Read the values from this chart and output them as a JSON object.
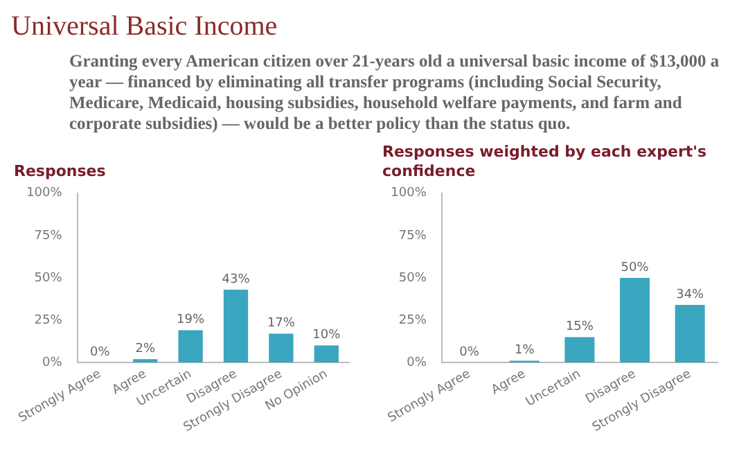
{
  "chart_data": [
    {
      "type": "other",
      "title": "Universal Basic Income",
      "subtitle": "Granting every American citizen over 21-years old a universal basic income of $13,000 a year — financed by eliminating all transfer programs (including Social Security, Medicare, Medicaid, housing subsidies, household welfare payments, and farm and corporate subsidies) — would be a better policy than the status quo."
    },
    {
      "type": "bar",
      "title": "Responses",
      "categories": [
        "Strongly Agree",
        "Agree",
        "Uncertain",
        "Disagree",
        "Strongly Disagree",
        "No Opinion"
      ],
      "values": [
        0,
        2,
        19,
        43,
        17,
        10
      ],
      "value_labels": [
        "0%",
        "2%",
        "19%",
        "43%",
        "17%",
        "10%"
      ],
      "color": "#3aa6c0",
      "ylim": [
        0,
        100
      ],
      "yticks": [
        {
          "value": 0,
          "label": "0%"
        },
        {
          "value": 25,
          "label": "25%"
        },
        {
          "value": 50,
          "label": "50%"
        },
        {
          "value": 75,
          "label": "75%"
        },
        {
          "value": 100,
          "label": "100%"
        }
      ]
    },
    {
      "type": "bar",
      "title": "Responses weighted by each expert's confidence",
      "categories": [
        "Strongly Agree",
        "Agree",
        "Uncertain",
        "Disagree",
        "Strongly Disagree"
      ],
      "values": [
        0,
        1,
        15,
        50,
        34
      ],
      "value_labels": [
        "0%",
        "1%",
        "15%",
        "50%",
        "34%"
      ],
      "color": "#3aa6c0",
      "ylim": [
        0,
        100
      ],
      "yticks": [
        {
          "value": 0,
          "label": "0%"
        },
        {
          "value": 25,
          "label": "25%"
        },
        {
          "value": 50,
          "label": "50%"
        },
        {
          "value": 75,
          "label": "75%"
        },
        {
          "value": 100,
          "label": "100%"
        }
      ]
    }
  ]
}
